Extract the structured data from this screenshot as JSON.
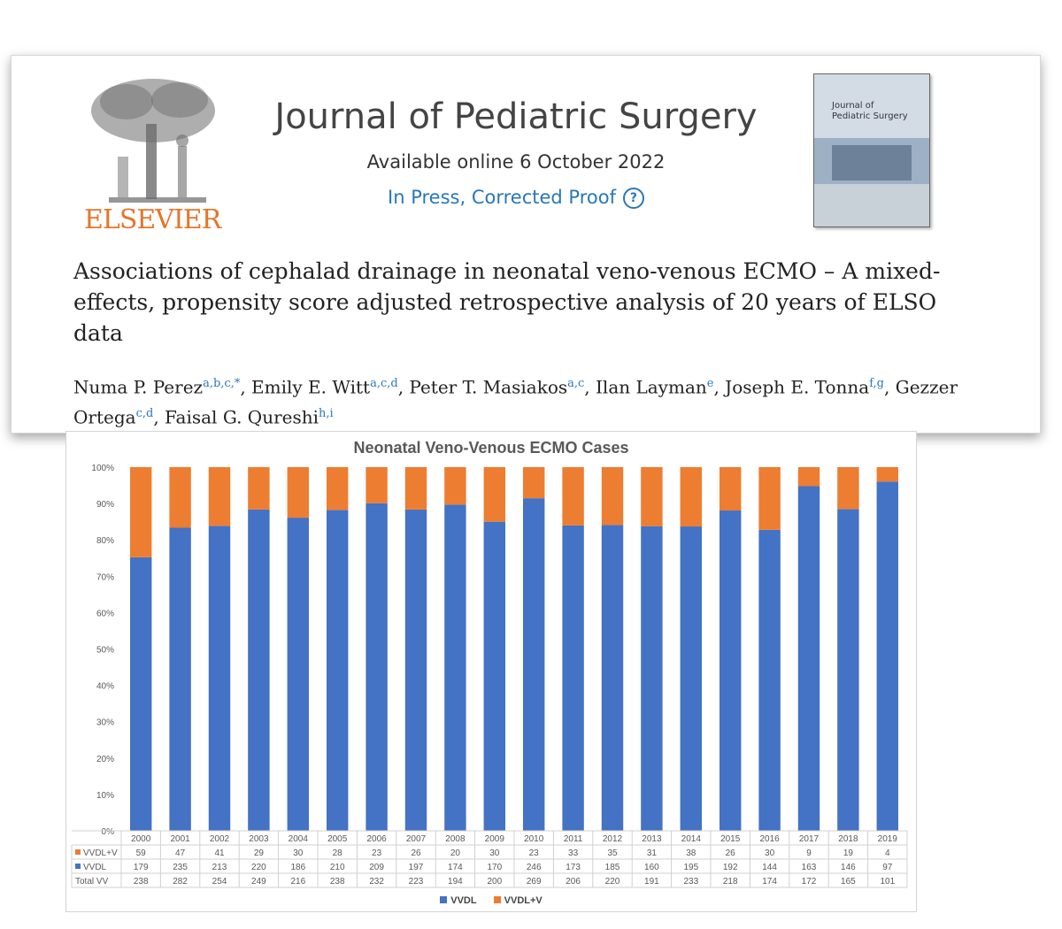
{
  "header": {
    "publisher": "ELSEVIER",
    "journal": "Journal of Pediatric Surgery",
    "available": "Available online 6 October 2022",
    "status": "In Press, Corrected Proof",
    "help_icon": "question-circle-icon",
    "cover_title": "Journal of\nPediatric Surgery",
    "article_title": "Associations of cephalad drainage in neonatal veno-venous ECMO – A mixed-effects, propensity score adjusted retrospective analysis of 20 years of ELSO data",
    "authors": [
      {
        "name": "Numa P. Perez",
        "aff": "a,b,c,*",
        "sep": ", "
      },
      {
        "name": "Emily E. Witt",
        "aff": "a,c,d",
        "sep": ", "
      },
      {
        "name": "Peter T. Masiakos",
        "aff": "a,c",
        "sep": ", "
      },
      {
        "name": "Ilan Layman",
        "aff": "e",
        "sep": ", "
      },
      {
        "name": "Joseph E. Tonna",
        "aff": "f,g",
        "sep": ", "
      },
      {
        "name": "Gezzer Ortega",
        "aff": "c,d",
        "sep": ", "
      },
      {
        "name": "Faisal G. Qureshi",
        "aff": "h,i",
        "sep": ""
      }
    ],
    "colors": {
      "publisher": "#e7752a",
      "link": "#2877b8"
    }
  },
  "chart_data": {
    "type": "bar",
    "stacked": "100%",
    "title": "Neonatal Veno-Venous ECMO Cases",
    "categories": [
      "2000",
      "2001",
      "2002",
      "2003",
      "2004",
      "2005",
      "2006",
      "2007",
      "2008",
      "2009",
      "2010",
      "2011",
      "2012",
      "2013",
      "2014",
      "2015",
      "2016",
      "2017",
      "2018",
      "2019"
    ],
    "series": [
      {
        "name": "VVDL",
        "color": "#4472c4",
        "values": [
          179,
          235,
          213,
          220,
          186,
          210,
          209,
          197,
          174,
          170,
          246,
          173,
          185,
          160,
          195,
          192,
          144,
          163,
          146,
          97
        ]
      },
      {
        "name": "VVDL+V",
        "color": "#ed7d31",
        "values": [
          59,
          47,
          41,
          29,
          30,
          28,
          23,
          26,
          20,
          30,
          23,
          33,
          35,
          31,
          38,
          26,
          30,
          9,
          19,
          4
        ]
      }
    ],
    "total_label": "Total VV",
    "totals": [
      238,
      282,
      254,
      249,
      216,
      238,
      232,
      223,
      194,
      200,
      269,
      206,
      220,
      191,
      233,
      218,
      174,
      172,
      165,
      101
    ],
    "yticks": [
      "0%",
      "10%",
      "20%",
      "30%",
      "40%",
      "50%",
      "60%",
      "70%",
      "80%",
      "90%",
      "100%"
    ],
    "ylim": [
      0,
      100
    ],
    "grid": false,
    "legend_position": "bottom"
  }
}
